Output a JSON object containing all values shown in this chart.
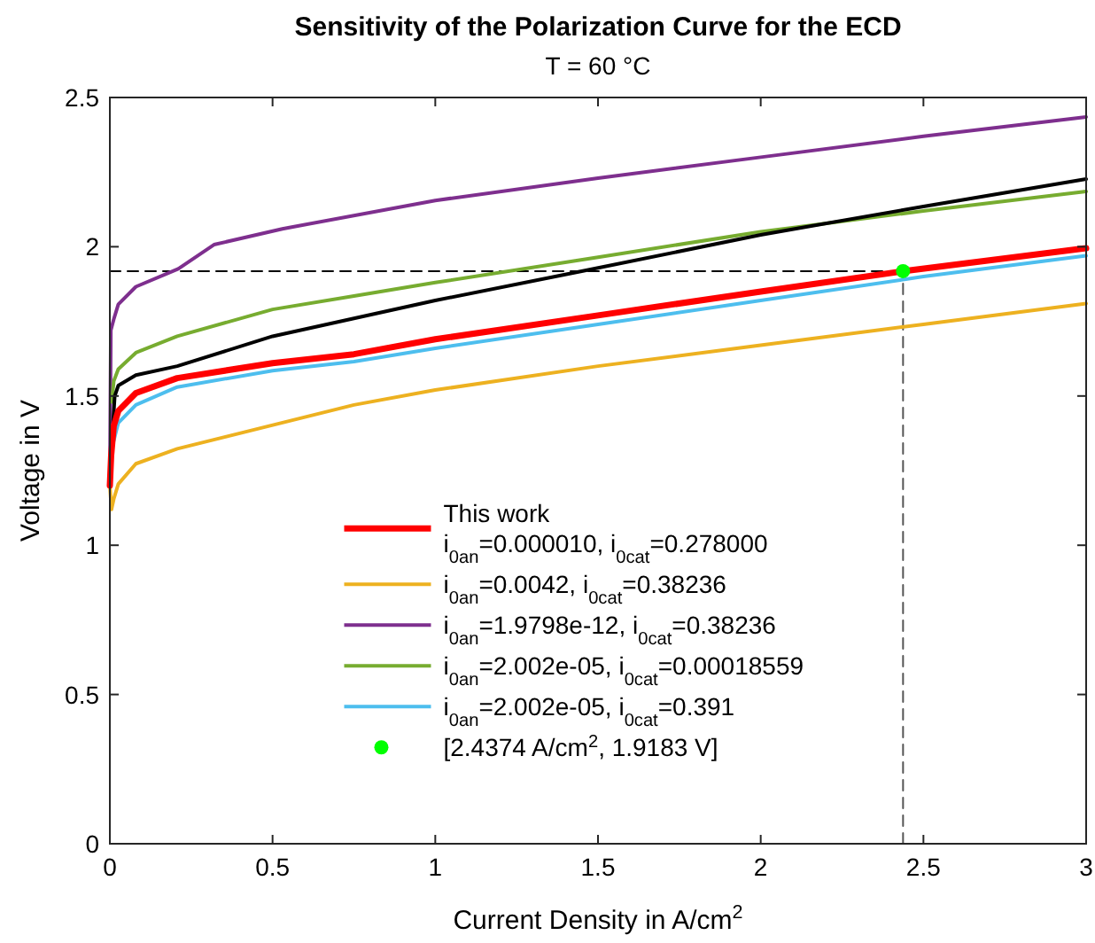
{
  "chart_data": {
    "type": "line",
    "title": "Sensitivity of the Polarization Curve for the ECD",
    "subtitle": "T = 60 °C",
    "xlabel": "Current Density in A/cm$^{2}$",
    "ylabel": "Voltage in V",
    "xlim": [
      0,
      3
    ],
    "ylim": [
      0,
      2.5
    ],
    "xticks": [
      0,
      0.5,
      1,
      1.5,
      2,
      2.5,
      3
    ],
    "yticks": [
      0,
      0.5,
      1,
      1.5,
      2,
      2.5
    ],
    "grid": false,
    "legend": "bottom",
    "marker": "none",
    "series": [
      {
        "name": "This work\ni$_{0an}$=0.000010, i$_{0cat}$=0.278000",
        "color": "#ff0000",
        "x": [
          0,
          0.004,
          0.012,
          0.026,
          0.08,
          0.207,
          0.5,
          0.75,
          1,
          1.5,
          2,
          2.4374,
          3
        ],
        "values": [
          1.2,
          1.3,
          1.4,
          1.45,
          1.51,
          1.56,
          1.61,
          1.64,
          1.69,
          1.77,
          1.85,
          1.918,
          1.995
        ]
      },
      {
        "name": "i$_{0an}$=0.0042, i$_{0cat}$=0.38236",
        "color": "#edb120",
        "x": [
          0,
          0.005,
          0.012,
          0.026,
          0.08,
          0.207,
          0.75,
          1,
          1.5,
          2,
          2.5,
          3
        ],
        "values": [
          1.2,
          1.12,
          1.155,
          1.205,
          1.273,
          1.323,
          1.47,
          1.52,
          1.6,
          1.67,
          1.74,
          1.81
        ]
      },
      {
        "name": "i$_{0an}$=1.9798e-12, i$_{0cat}$=0.38236",
        "color": "#7e2f8e",
        "x": [
          0,
          0.003,
          0.012,
          0.026,
          0.08,
          0.21,
          0.32,
          0.53,
          1,
          1.5,
          2,
          2.5,
          3
        ],
        "values": [
          1.2,
          1.72,
          1.757,
          1.807,
          1.866,
          1.926,
          2.007,
          2.06,
          2.155,
          2.23,
          2.3,
          2.37,
          2.435
        ]
      },
      {
        "name": "i$_{0an}$=2.002e-05, i$_{0cat}$=0.00018559",
        "color": "#77ac30",
        "x": [
          0.006,
          0.012,
          0.026,
          0.08,
          0.207,
          0.5,
          0.75,
          1,
          1.5,
          2,
          2.5,
          3
        ],
        "values": [
          1.48,
          1.55,
          1.59,
          1.645,
          1.7,
          1.79,
          1.835,
          1.88,
          1.965,
          2.05,
          2.12,
          2.185
        ]
      },
      {
        "name": "i$_{0an}$=2.002e-05, i$_{0cat}$=0.391",
        "color": "#4dbeee",
        "x": [
          0.012,
          0.026,
          0.08,
          0.207,
          0.5,
          0.75,
          1,
          1.5,
          2,
          2.5,
          3
        ],
        "values": [
          1.35,
          1.41,
          1.47,
          1.53,
          1.585,
          1.615,
          1.66,
          1.74,
          1.82,
          1.9,
          1.97
        ]
      },
      {
        "type": "scatter",
        "marker": "circle",
        "name": "[2.4374 A/cm$^{2}$, 1.9183 V]",
        "color": "#00ff00",
        "x": [
          2.4374
        ],
        "values": [
          1.9183
        ]
      },
      {
        "color": "#000000",
        "x": [
          0.01,
          0.015,
          0.026,
          0.08,
          0.207,
          0.5,
          0.75,
          1,
          1.45,
          2,
          2.5,
          3
        ],
        "values": [
          1.41,
          1.5,
          1.535,
          1.57,
          1.6,
          1.7,
          1.76,
          1.82,
          1.918,
          2.04,
          2.135,
          2.227
        ]
      },
      {
        "color": "#000000",
        "line_style": "dashed",
        "x": [
          0,
          2.4374
        ],
        "values": [
          1.9183,
          1.9183
        ]
      },
      {
        "color": "#555555",
        "line_style": "dashed",
        "x": [
          2.4374,
          2.4374
        ],
        "values": [
          0,
          1.9183
        ]
      }
    ]
  }
}
